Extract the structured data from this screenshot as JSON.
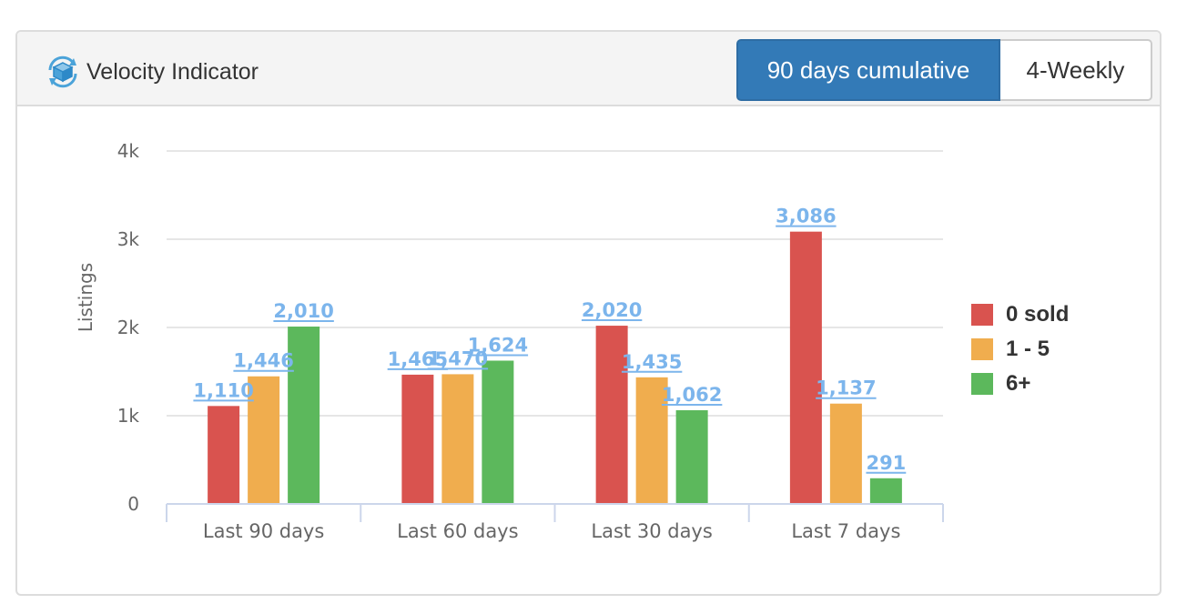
{
  "header": {
    "title": "Velocity Indicator",
    "icon": "box-refresh-icon",
    "buttons": [
      {
        "label": "90 days cumulative",
        "active": true
      },
      {
        "label": "4-Weekly",
        "active": false
      }
    ]
  },
  "colors": {
    "accent": "#337ab7",
    "data_label": "#7cb5ec",
    "grid": "#e6e6e6",
    "axis": "#ccd6eb"
  },
  "chart_data": {
    "type": "bar",
    "categories": [
      "Last 90 days",
      "Last 60 days",
      "Last 30 days",
      "Last 7 days"
    ],
    "series": [
      {
        "name": "0 sold",
        "color": "#d9534f",
        "values": [
          1110,
          1465,
          2020,
          3086
        ],
        "labels": [
          "1,110",
          "1,465",
          "2,020",
          "3,086"
        ]
      },
      {
        "name": "1 - 5",
        "color": "#f0ad4e",
        "values": [
          1446,
          1470,
          1435,
          1137
        ],
        "labels": [
          "1,446",
          "1,470",
          "1,435",
          "1,137"
        ]
      },
      {
        "name": "6+",
        "color": "#5cb85c",
        "values": [
          2010,
          1624,
          1062,
          291
        ],
        "labels": [
          "2,010",
          "1,624",
          "1,062",
          "291"
        ]
      }
    ],
    "ylabel": "Listings",
    "xlabel": "",
    "ylim": [
      0,
      4000
    ],
    "yticks": [
      0,
      1000,
      2000,
      3000,
      4000
    ],
    "ytick_labels": [
      "0",
      "1k",
      "2k",
      "3k",
      "4k"
    ],
    "grid": true,
    "legend": "right"
  }
}
